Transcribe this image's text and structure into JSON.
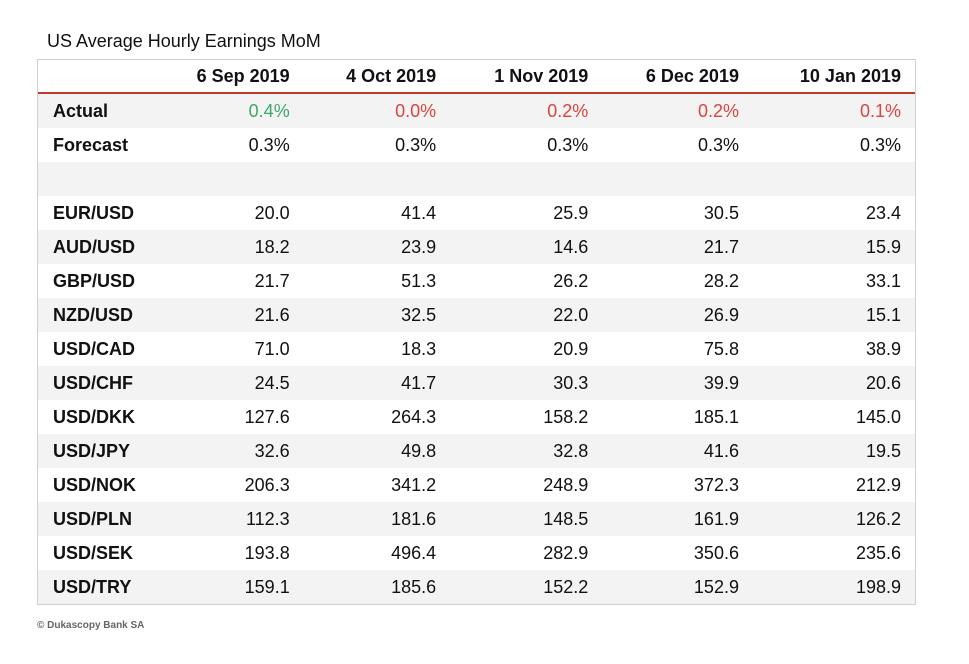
{
  "title": "US Average Hourly Earnings MoM",
  "table": {
    "header": [
      "6 Sep 2019",
      "4 Oct 2019",
      "1 Nov 2019",
      "6 Dec 2019",
      "10 Jan 2019"
    ],
    "summary_rows": [
      {
        "label": "Actual",
        "values": [
          "0.4%",
          "0.0%",
          "0.2%",
          "0.2%",
          "0.1%"
        ],
        "colors": [
          "#3da86c",
          "#d9453f",
          "#d9453f",
          "#d9453f",
          "#d9453f"
        ]
      },
      {
        "label": "Forecast",
        "values": [
          "0.3%",
          "0.3%",
          "0.3%",
          "0.3%",
          "0.3%"
        ]
      }
    ],
    "rate_rows": [
      {
        "label": "EUR/USD",
        "values": [
          "20.0",
          "41.4",
          "25.9",
          "30.5",
          "23.4"
        ]
      },
      {
        "label": "AUD/USD",
        "values": [
          "18.2",
          "23.9",
          "14.6",
          "21.7",
          "15.9"
        ]
      },
      {
        "label": "GBP/USD",
        "values": [
          "21.7",
          "51.3",
          "26.2",
          "28.2",
          "33.1"
        ]
      },
      {
        "label": "NZD/USD",
        "values": [
          "21.6",
          "32.5",
          "22.0",
          "26.9",
          "15.1"
        ]
      },
      {
        "label": "USD/CAD",
        "values": [
          "71.0",
          "18.3",
          "20.9",
          "75.8",
          "38.9"
        ]
      },
      {
        "label": "USD/CHF",
        "values": [
          "24.5",
          "41.7",
          "30.3",
          "39.9",
          "20.6"
        ]
      },
      {
        "label": "USD/DKK",
        "values": [
          "127.6",
          "264.3",
          "158.2",
          "185.1",
          "145.0"
        ]
      },
      {
        "label": "USD/JPY",
        "values": [
          "32.6",
          "49.8",
          "32.8",
          "41.6",
          "19.5"
        ]
      },
      {
        "label": "USD/NOK",
        "values": [
          "206.3",
          "341.2",
          "248.9",
          "372.3",
          "212.9"
        ]
      },
      {
        "label": "USD/PLN",
        "values": [
          "112.3",
          "181.6",
          "148.5",
          "161.9",
          "126.2"
        ]
      },
      {
        "label": "USD/SEK",
        "values": [
          "193.8",
          "496.4",
          "282.9",
          "350.6",
          "235.6"
        ]
      },
      {
        "label": "USD/TRY",
        "values": [
          "159.1",
          "185.6",
          "152.2",
          "152.9",
          "198.9"
        ]
      }
    ]
  },
  "footer": "© Dukascopy Bank SA"
}
